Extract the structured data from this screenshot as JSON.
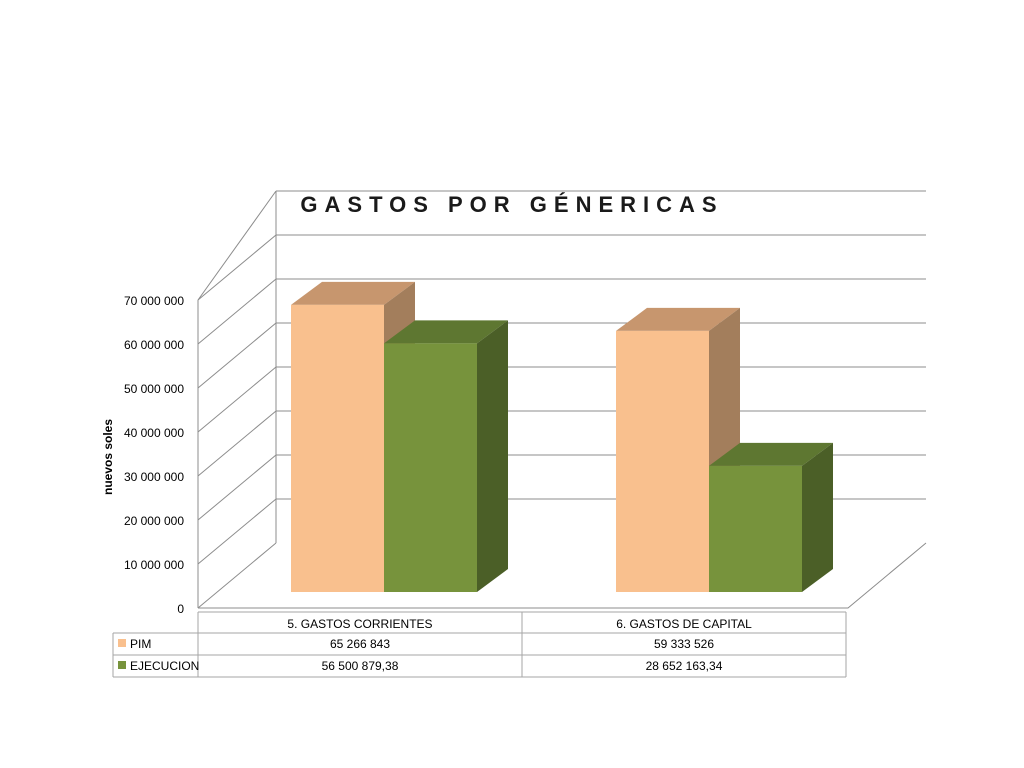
{
  "chart_data": {
    "type": "bar",
    "title": "GASTOS POR  GÉNERICAS",
    "xlabel": "",
    "ylabel": "nuevos soles",
    "ylim": [
      0,
      70000000
    ],
    "yticks": [
      0,
      10000000,
      20000000,
      30000000,
      40000000,
      50000000,
      60000000,
      70000000
    ],
    "ytick_labels": [
      "0",
      "10 000 000",
      "20 000 000",
      "30 000 000",
      "40 000 000",
      "50 000 000",
      "60 000 000",
      "70 000 000"
    ],
    "categories": [
      "5. GASTOS CORRIENTES",
      "6. GASTOS DE CAPITAL"
    ],
    "series": [
      {
        "name": "PIM",
        "values": [
          65266843,
          59333526
        ],
        "value_labels": [
          "65 266 843",
          "59 333 526"
        ],
        "color": "#F9C08E",
        "top_color": "#C7966E",
        "side_color": "#A37E5C"
      },
      {
        "name": "EJECUCION",
        "values": [
          56500879.38,
          28652163.34
        ],
        "value_labels": [
          "56 500 879,38",
          "28 652 163,34"
        ],
        "color": "#77933C",
        "top_color": "#5E7731",
        "side_color": "#4B5F27"
      }
    ],
    "grid": true,
    "legend": "data-table"
  }
}
